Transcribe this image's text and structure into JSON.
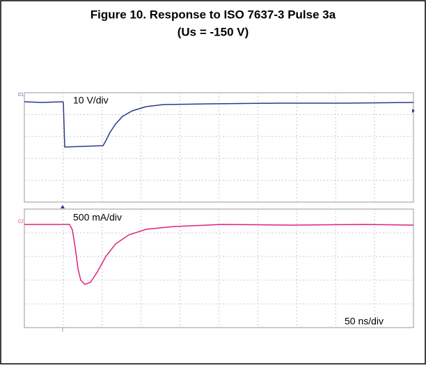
{
  "figure": {
    "title_line1": "Figure 10. Response to ISO 7637-3 Pulse 3a",
    "title_line2": "(Us = -150 V)",
    "panels": [
      {
        "channel": "C1",
        "scale": "10 V/div"
      },
      {
        "channel": "C2",
        "scale": "500 mA/div"
      }
    ],
    "timebase": "50 ns/div"
  }
}
